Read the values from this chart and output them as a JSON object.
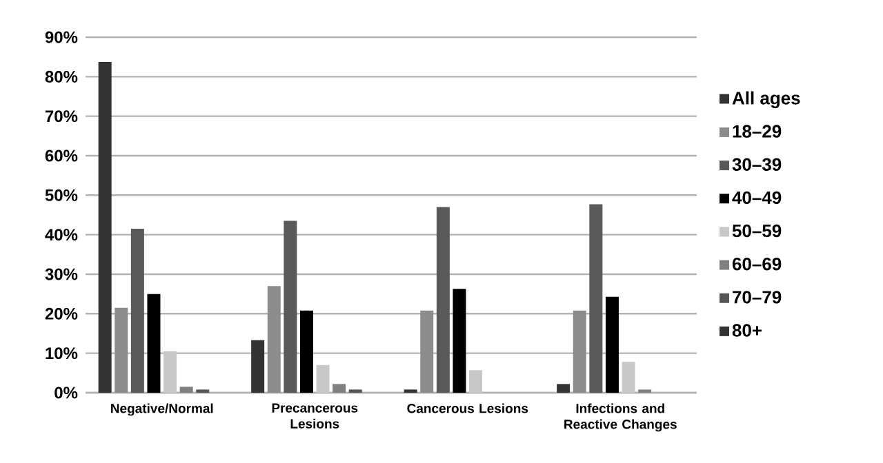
{
  "chart_data": {
    "type": "bar",
    "categories": [
      "Negative/Normal",
      "Precancerous Lesions",
      "Cancerous Lesions",
      "Infections and Reactive Changes"
    ],
    "series": [
      {
        "name": "All ages",
        "color": "#333333",
        "values": [
          83.7,
          13.3,
          0.8,
          2.2
        ]
      },
      {
        "name": "18–29",
        "color": "#8c8c8c",
        "values": [
          21.5,
          27,
          20.8,
          20.8
        ]
      },
      {
        "name": "30–39",
        "color": "#595959",
        "values": [
          41.5,
          43.5,
          47,
          47.7
        ]
      },
      {
        "name": "40–49",
        "color": "#000000",
        "values": [
          25,
          20.8,
          26.3,
          24.3
        ]
      },
      {
        "name": "50–59",
        "color": "#c8c8c8",
        "values": [
          10.5,
          7,
          5.7,
          7.8
        ]
      },
      {
        "name": "60–69",
        "color": "#808080",
        "values": [
          1.5,
          2.2,
          0,
          0.8
        ]
      },
      {
        "name": "70–79",
        "color": "#555555",
        "values": [
          0.8,
          0.8,
          0,
          0
        ]
      },
      {
        "name": "80+",
        "color": "#333333",
        "values": [
          0,
          0,
          0,
          0
        ]
      }
    ],
    "ylim": [
      0,
      90
    ],
    "yticks": [
      {
        "value": 0,
        "label": "0%"
      },
      {
        "value": 10,
        "label": "10%"
      },
      {
        "value": 20,
        "label": "20%"
      },
      {
        "value": 30,
        "label": "30%"
      },
      {
        "value": 40,
        "label": "40%"
      },
      {
        "value": 50,
        "label": "50%"
      },
      {
        "value": 60,
        "label": "60%"
      },
      {
        "value": 70,
        "label": "70%"
      },
      {
        "value": 80,
        "label": "80%"
      },
      {
        "value": 90,
        "label": "90%"
      }
    ],
    "grid": "y",
    "legend": "right"
  }
}
